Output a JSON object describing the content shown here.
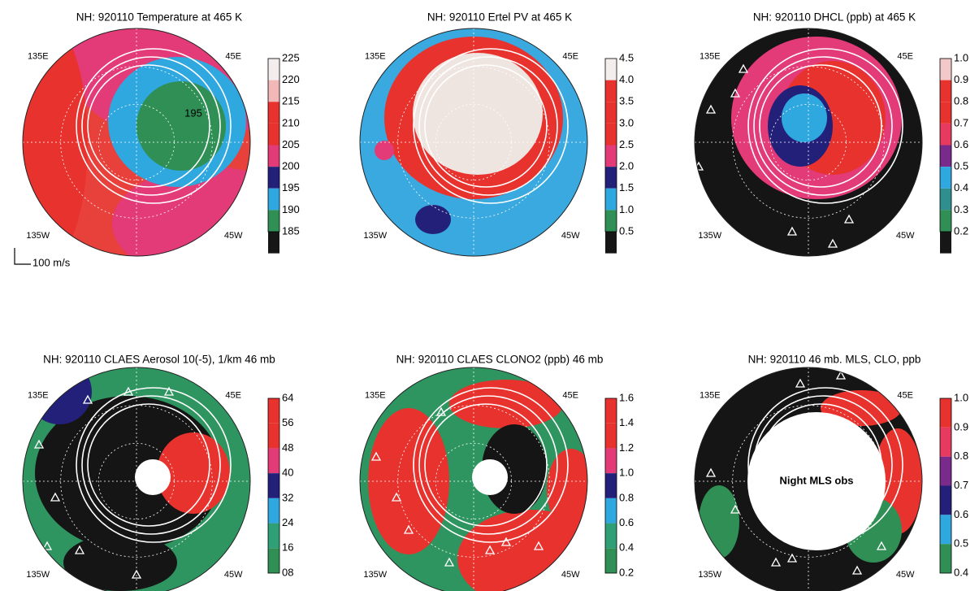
{
  "panels": [
    {
      "title": "NH: 920110 Temperature at 465 K",
      "lon": {
        "nw": "135E",
        "ne": "45E",
        "sw": "135W",
        "se": "45W"
      },
      "colorbar": {
        "labels": [
          "225",
          "220",
          "215",
          "210",
          "205",
          "200",
          "195",
          "190",
          "185"
        ],
        "colors": [
          "#f4eded",
          "#f2b8b8",
          "#e8322e",
          "#e8322e",
          "#e33a78",
          "#23207a",
          "#2fa7df",
          "#2f8f55",
          "#161616"
        ]
      },
      "contour_label": "195",
      "scale_label": "100 m/s"
    },
    {
      "title": "NH: 920110 Ertel PV at 465 K",
      "lon": {
        "nw": "135E",
        "ne": "45E",
        "sw": "135W",
        "se": "45W"
      },
      "colorbar": {
        "labels": [
          "4.5",
          "4.0",
          "3.5",
          "3.0",
          "2.5",
          "2.0",
          "1.5",
          "1.0",
          "0.5"
        ],
        "colors": [
          "#f4eded",
          "#e8322e",
          "#e8322e",
          "#e8322e",
          "#e33a78",
          "#23207a",
          "#2fa7df",
          "#2f8f55",
          "#161616"
        ]
      }
    },
    {
      "title": "NH: 920110 DHCL (ppb) at 465 K",
      "lon": {
        "nw": "135E",
        "ne": "45E",
        "sw": "135W",
        "se": "45W"
      },
      "colorbar": {
        "labels": [
          "1.0",
          "0.9",
          "0.8",
          "0.7",
          "0.6",
          "0.5",
          "0.4",
          "0.3",
          "0.2"
        ],
        "colors": [
          "#f2c8c8",
          "#e8322e",
          "#e8322e",
          "#e83a60",
          "#7a2a8a",
          "#2fa7df",
          "#2f8f8f",
          "#2f8f55",
          "#161616"
        ]
      }
    },
    {
      "title": "NH: 920110 CLAES Aerosol 10(-5), 1/km 46 mb",
      "lon": {
        "nw": "135E",
        "ne": "45E",
        "sw": "135W",
        "se": "45W"
      },
      "colorbar": {
        "labels": [
          "64",
          "56",
          "48",
          "40",
          "32",
          "24",
          "16",
          "08"
        ],
        "colors": [
          "#e8322e",
          "#e8322e",
          "#e33a78",
          "#23207a",
          "#2fa7df",
          "#2f9f78",
          "#2f8f55"
        ]
      }
    },
    {
      "title": "NH: 920110 CLAES CLONO2 (ppb) 46 mb",
      "lon": {
        "nw": "135E",
        "ne": "45E",
        "sw": "135W",
        "se": "45W"
      },
      "colorbar": {
        "labels": [
          "1.6",
          "1.4",
          "1.2",
          "1.0",
          "0.8",
          "0.6",
          "0.4",
          "0.2"
        ],
        "colors": [
          "#e8322e",
          "#e8322e",
          "#e33a78",
          "#23207a",
          "#2fa7df",
          "#2f9f78",
          "#2f8f55"
        ]
      }
    },
    {
      "title": "NH: 920110 46 mb. MLS, CLO, ppb",
      "lon": {
        "nw": "135E",
        "ne": "45E",
        "sw": "135W",
        "se": "45W"
      },
      "colorbar": {
        "labels": [
          "1.0",
          "0.9",
          "0.8",
          "0.7",
          "0.6",
          "0.5",
          "0.4"
        ],
        "colors": [
          "#e8322e",
          "#e83a60",
          "#7a2a8a",
          "#23207a",
          "#2fa7df",
          "#2f8f55"
        ]
      },
      "center_label": "Night MLS obs"
    }
  ]
}
